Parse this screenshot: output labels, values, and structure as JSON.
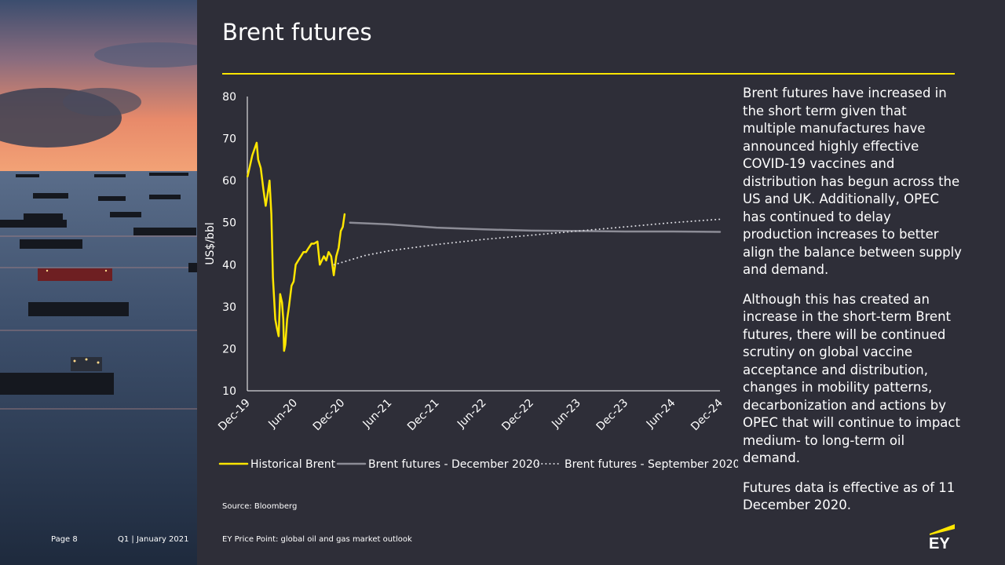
{
  "slide": {
    "title": "Brent futures",
    "source": "Source: Bloomberg",
    "page_label": "Page 8",
    "period_label": "Q1 | January 2021",
    "doc_title": "EY Price Point: global oil and gas market outlook",
    "logo_text": "EY"
  },
  "commentary": {
    "p1": "Brent futures have increased in the short term given that multiple manufactures have announced highly effective COVID-19 vaccines and distribution has begun across the US and UK. Additionally, OPEC has continued to delay production increases to better align the balance between supply and demand.",
    "p2": "Although this has created an increase in the short-term Brent futures, there will be continued scrutiny on global vaccine acceptance and distribution, changes in mobility patterns, decarbonization and actions by OPEC that will continue to impact medium- to long-term oil demand.",
    "p3": "Futures data is effective as of 11 December 2020."
  },
  "colors": {
    "background": "#2e2e38",
    "accent": "#ffe600",
    "futures_dec": "#8c8c96",
    "futures_sep": "#d8d8de"
  },
  "chart_data": {
    "type": "line",
    "ylabel": "US$/bbl",
    "xlabel": "",
    "ylim": [
      10,
      80
    ],
    "y_ticks": [
      10,
      20,
      30,
      40,
      50,
      60,
      70,
      80
    ],
    "x_ticks": [
      "Dec-19",
      "Jun-20",
      "Dec-20",
      "Jun-21",
      "Dec-21",
      "Jun-22",
      "Dec-22",
      "Jun-23",
      "Dec-23",
      "Jun-24",
      "Dec-24"
    ],
    "grid": false,
    "legend": "bottom",
    "series": [
      {
        "name": "Historical Brent",
        "style": "solid",
        "color": "#ffe600",
        "points": [
          [
            "2019-12-02",
            61
          ],
          [
            "2019-12-20",
            66
          ],
          [
            "2020-01-06",
            69
          ],
          [
            "2020-01-12",
            65
          ],
          [
            "2020-01-22",
            63
          ],
          [
            "2020-02-01",
            58
          ],
          [
            "2020-02-10",
            54
          ],
          [
            "2020-02-18",
            57
          ],
          [
            "2020-02-25",
            60
          ],
          [
            "2020-03-03",
            52
          ],
          [
            "2020-03-09",
            37
          ],
          [
            "2020-03-18",
            27
          ],
          [
            "2020-03-24",
            25
          ],
          [
            "2020-03-31",
            23
          ],
          [
            "2020-04-06",
            33
          ],
          [
            "2020-04-13",
            31
          ],
          [
            "2020-04-18",
            27
          ],
          [
            "2020-04-21",
            19.5
          ],
          [
            "2020-04-26",
            21
          ],
          [
            "2020-05-03",
            27
          ],
          [
            "2020-05-10",
            30
          ],
          [
            "2020-05-20",
            35
          ],
          [
            "2020-05-28",
            36
          ],
          [
            "2020-06-05",
            40
          ],
          [
            "2020-06-15",
            41
          ],
          [
            "2020-06-25",
            42
          ],
          [
            "2020-07-05",
            43
          ],
          [
            "2020-07-15",
            43
          ],
          [
            "2020-07-25",
            44
          ],
          [
            "2020-08-05",
            45
          ],
          [
            "2020-08-15",
            45
          ],
          [
            "2020-08-28",
            45.5
          ],
          [
            "2020-09-06",
            40
          ],
          [
            "2020-09-14",
            41
          ],
          [
            "2020-09-22",
            42
          ],
          [
            "2020-10-01",
            41
          ],
          [
            "2020-10-10",
            43
          ],
          [
            "2020-10-20",
            42
          ],
          [
            "2020-10-30",
            37.5
          ],
          [
            "2020-11-09",
            42
          ],
          [
            "2020-11-18",
            44
          ],
          [
            "2020-11-26",
            48
          ],
          [
            "2020-12-04",
            49
          ],
          [
            "2020-12-11",
            52
          ]
        ]
      },
      {
        "name": "Brent futures - December 2020",
        "style": "solid",
        "color": "#8c8c96",
        "points": [
          [
            "2021-01-01",
            50
          ],
          [
            "2021-06-01",
            49.6
          ],
          [
            "2021-12-01",
            48.8
          ],
          [
            "2022-06-01",
            48.4
          ],
          [
            "2022-12-01",
            48.1
          ],
          [
            "2023-06-01",
            48.0
          ],
          [
            "2023-12-01",
            47.9
          ],
          [
            "2024-06-01",
            47.9
          ],
          [
            "2024-12-01",
            47.8
          ]
        ]
      },
      {
        "name": "Brent futures - September 2020",
        "style": "dotted",
        "color": "#d8d8de",
        "points": [
          [
            "2020-11-01",
            40
          ],
          [
            "2021-03-01",
            42.2
          ],
          [
            "2021-06-01",
            43.3
          ],
          [
            "2021-12-01",
            44.8
          ],
          [
            "2022-06-01",
            46.0
          ],
          [
            "2022-12-01",
            47.0
          ],
          [
            "2023-06-01",
            48.0
          ],
          [
            "2023-12-01",
            49.0
          ],
          [
            "2024-06-01",
            50.0
          ],
          [
            "2024-12-01",
            50.8
          ]
        ]
      }
    ]
  }
}
